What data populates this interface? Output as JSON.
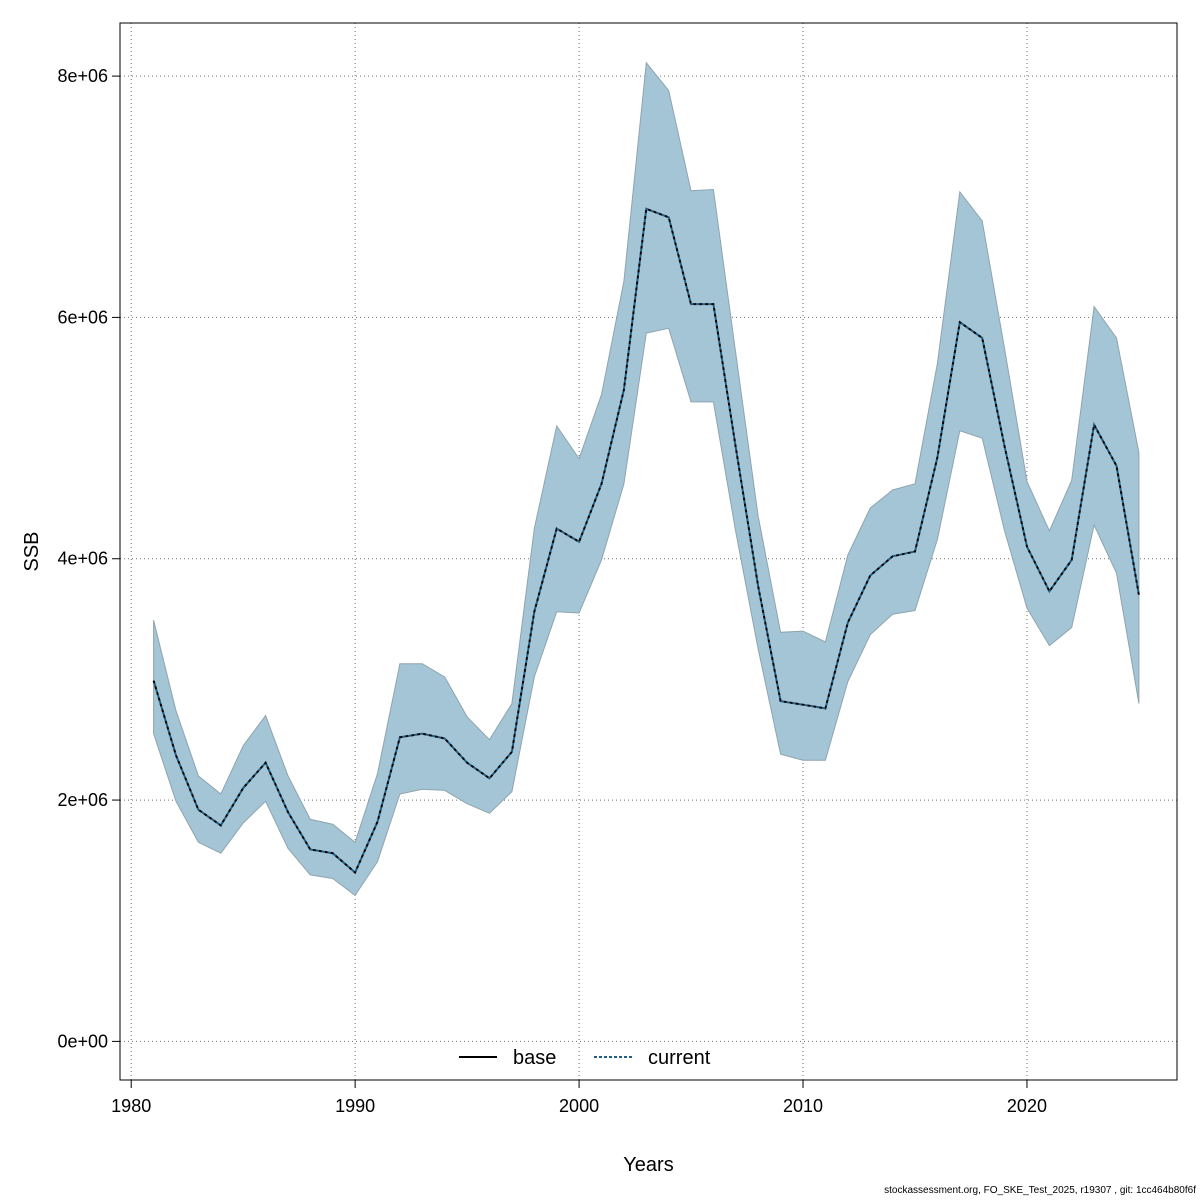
{
  "footer_text": "stockassessment.org, FO_SKE_Test_2025, r19307 , git: 1cc464b80f6f",
  "colors": {
    "ci_fill": "#a4c5d6",
    "ci_edge": "#8fa4ae",
    "grid": "#6e6e6e",
    "base_line": "#000000",
    "current_line": "#1f5f86",
    "current_dash_dark": "#000000"
  },
  "chart_data": {
    "type": "line",
    "xlabel": "Years",
    "ylabel": "SSB",
    "xlim": [
      1979.5,
      2026.7
    ],
    "ylim": [
      -320000,
      8440000
    ],
    "x_ticks": [
      1980,
      1990,
      2000,
      2010,
      2020
    ],
    "x_tick_labels": [
      "1980",
      "1990",
      "2000",
      "2010",
      "2020"
    ],
    "y_ticks": [
      0,
      2000000,
      4000000,
      6000000,
      8000000
    ],
    "y_tick_labels": [
      "0e+00",
      "2e+06",
      "4e+06",
      "6e+06",
      "8e+06"
    ],
    "grid": true,
    "legend": {
      "placement": "bottom-center",
      "entries": [
        {
          "label": "base",
          "style": "solid"
        },
        {
          "label": "current",
          "style": "dashed"
        }
      ]
    },
    "years": [
      1981,
      1982,
      1983,
      1984,
      1985,
      1986,
      1987,
      1988,
      1989,
      1990,
      1991,
      1992,
      1993,
      1994,
      1995,
      1996,
      1997,
      1998,
      1999,
      2000,
      2001,
      2002,
      2003,
      2004,
      2005,
      2006,
      2007,
      2008,
      2009,
      2010,
      2011,
      2012,
      2013,
      2014,
      2015,
      2016,
      2017,
      2018,
      2019,
      2020,
      2021,
      2022,
      2023,
      2024,
      2025
    ],
    "upper": [
      3490000,
      2740000,
      2200000,
      2050000,
      2450000,
      2700000,
      2200000,
      1840000,
      1800000,
      1650000,
      2220000,
      3130000,
      3130000,
      3020000,
      2690000,
      2500000,
      2800000,
      4250000,
      5100000,
      4830000,
      5360000,
      6300000,
      8110000,
      7880000,
      7050000,
      7060000,
      5700000,
      4350000,
      3390000,
      3400000,
      3310000,
      4030000,
      4420000,
      4570000,
      4620000,
      5620000,
      7040000,
      6800000,
      5740000,
      4640000,
      4230000,
      4650000,
      6090000,
      5830000,
      4880000
    ],
    "lower": [
      2550000,
      1990000,
      1650000,
      1560000,
      1810000,
      1990000,
      1600000,
      1380000,
      1350000,
      1210000,
      1490000,
      2050000,
      2090000,
      2080000,
      1970000,
      1890000,
      2070000,
      3020000,
      3560000,
      3550000,
      3990000,
      4620000,
      5870000,
      5910000,
      5300000,
      5300000,
      4220000,
      3250000,
      2380000,
      2330000,
      2330000,
      2980000,
      3370000,
      3540000,
      3570000,
      4160000,
      5060000,
      5000000,
      4230000,
      3590000,
      3280000,
      3430000,
      4280000,
      3880000,
      2800000
    ],
    "series": [
      {
        "name": "base",
        "values": [
          2990000,
          2370000,
          1920000,
          1790000,
          2100000,
          2310000,
          1900000,
          1590000,
          1560000,
          1400000,
          1820000,
          2520000,
          2550000,
          2510000,
          2310000,
          2180000,
          2400000,
          3560000,
          4250000,
          4140000,
          4620000,
          5400000,
          6900000,
          6830000,
          6110000,
          6110000,
          4920000,
          3770000,
          2820000,
          2790000,
          2760000,
          3470000,
          3860000,
          4020000,
          4060000,
          4840000,
          5960000,
          5830000,
          4930000,
          4100000,
          3730000,
          3990000,
          5110000,
          4770000,
          3700000
        ]
      },
      {
        "name": "current",
        "values": [
          2990000,
          2370000,
          1920000,
          1790000,
          2100000,
          2310000,
          1900000,
          1590000,
          1560000,
          1400000,
          1820000,
          2520000,
          2550000,
          2510000,
          2310000,
          2180000,
          2400000,
          3560000,
          4250000,
          4140000,
          4620000,
          5400000,
          6900000,
          6830000,
          6110000,
          6110000,
          4920000,
          3770000,
          2820000,
          2790000,
          2760000,
          3470000,
          3860000,
          4020000,
          4060000,
          4840000,
          5960000,
          5830000,
          4930000,
          4100000,
          3730000,
          3990000,
          5110000,
          4770000,
          3700000
        ]
      }
    ]
  }
}
